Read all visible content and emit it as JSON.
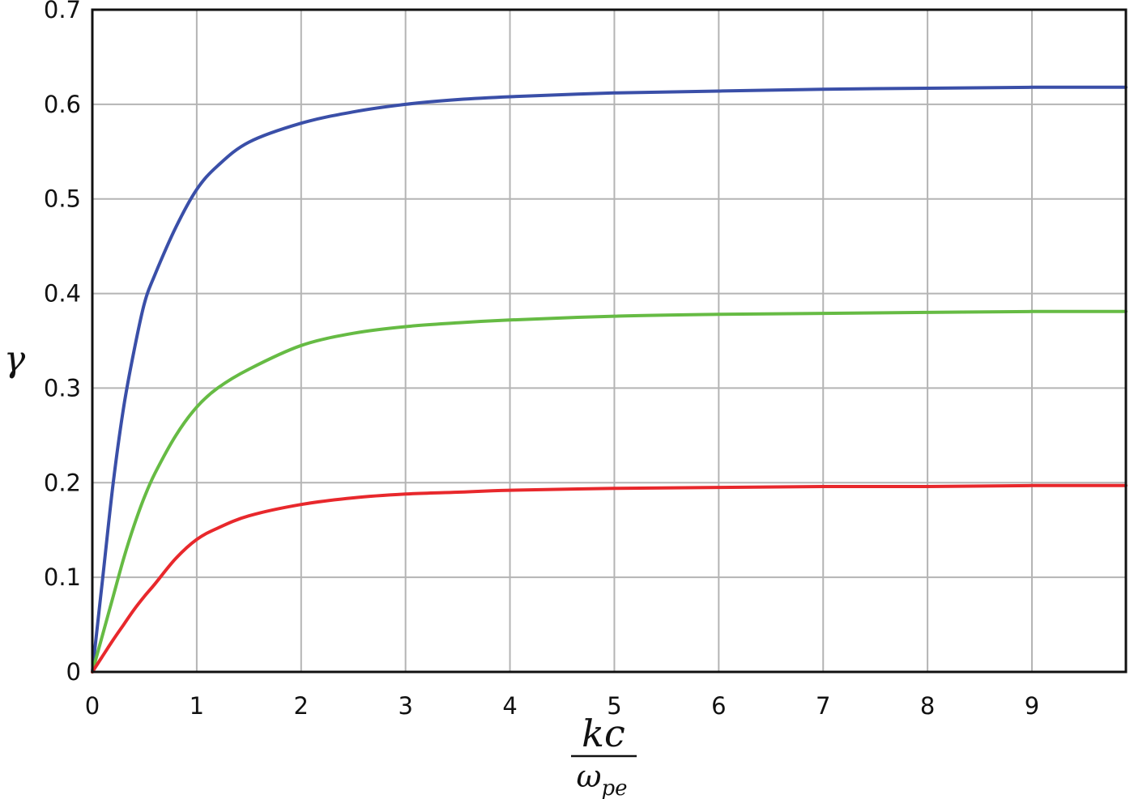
{
  "chart_data": {
    "type": "line",
    "xlabel_numerator": "kc",
    "xlabel_denominator_base": "ω",
    "xlabel_denominator_sub": "pe",
    "ylabel": "γ",
    "xlim": [
      0,
      9.9
    ],
    "ylim": [
      0,
      0.7
    ],
    "x_ticks": [
      "0",
      "1",
      "2",
      "3",
      "4",
      "5",
      "6",
      "7",
      "8",
      "9"
    ],
    "y_ticks": [
      "0",
      "0.1",
      "0.2",
      "0.3",
      "0.4",
      "0.5",
      "0.6",
      "0.7"
    ],
    "grid": true,
    "legend": "none",
    "series": [
      {
        "color": "#3a4fa8",
        "x": [
          0,
          0.1,
          0.2,
          0.3,
          0.4,
          0.5,
          0.6,
          0.8,
          1.0,
          1.2,
          1.5,
          2.0,
          2.5,
          3.0,
          3.5,
          4.0,
          5.0,
          6.0,
          7.0,
          8.0,
          9.0,
          9.9
        ],
        "y": [
          0,
          0.1,
          0.2,
          0.28,
          0.34,
          0.39,
          0.42,
          0.47,
          0.51,
          0.535,
          0.56,
          0.58,
          0.592,
          0.6,
          0.605,
          0.608,
          0.612,
          0.614,
          0.616,
          0.617,
          0.618,
          0.618
        ]
      },
      {
        "color": "#66bb44",
        "x": [
          0,
          0.1,
          0.2,
          0.3,
          0.4,
          0.5,
          0.6,
          0.8,
          1.0,
          1.2,
          1.5,
          2.0,
          2.5,
          3.0,
          3.5,
          4.0,
          5.0,
          6.0,
          7.0,
          8.0,
          9.0,
          9.9
        ],
        "y": [
          0,
          0.04,
          0.08,
          0.12,
          0.155,
          0.185,
          0.21,
          0.25,
          0.28,
          0.3,
          0.32,
          0.345,
          0.358,
          0.365,
          0.369,
          0.372,
          0.376,
          0.378,
          0.379,
          0.38,
          0.381,
          0.381
        ]
      },
      {
        "color": "#e8282c",
        "x": [
          0,
          0.1,
          0.2,
          0.3,
          0.4,
          0.5,
          0.6,
          0.8,
          1.0,
          1.2,
          1.5,
          2.0,
          2.5,
          3.0,
          3.5,
          4.0,
          5.0,
          6.0,
          7.0,
          8.0,
          9.0,
          9.9
        ],
        "y": [
          0,
          0.017,
          0.034,
          0.05,
          0.066,
          0.08,
          0.093,
          0.12,
          0.14,
          0.152,
          0.165,
          0.177,
          0.184,
          0.188,
          0.19,
          0.192,
          0.194,
          0.195,
          0.196,
          0.196,
          0.197,
          0.197
        ]
      }
    ]
  }
}
